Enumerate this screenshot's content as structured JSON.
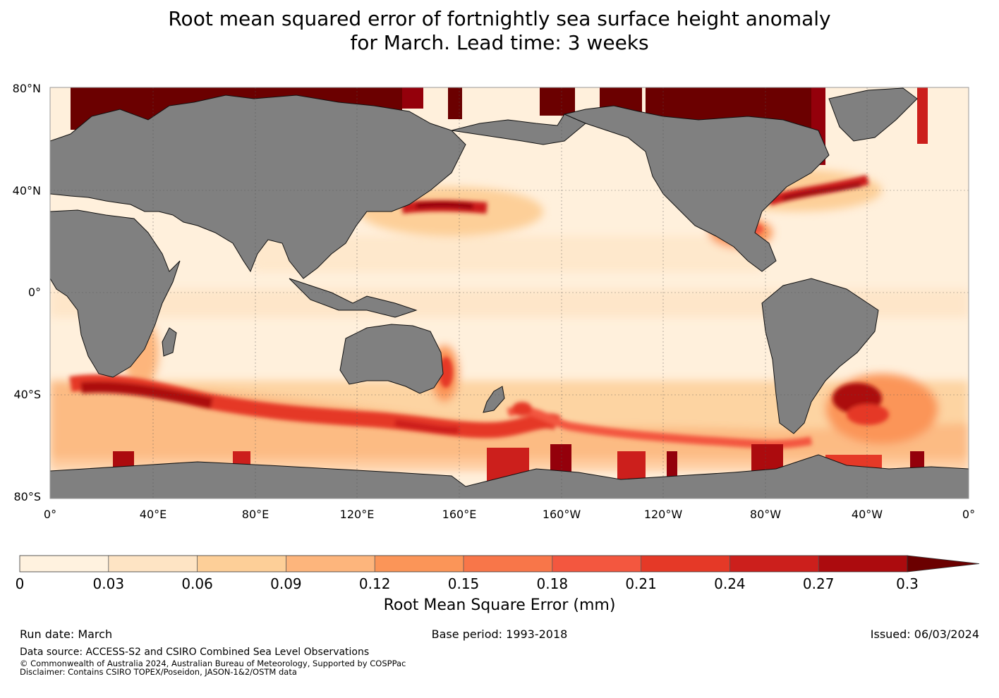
{
  "title_line1": "Root mean squared error of fortnightly sea surface height anomaly",
  "title_line2": "for March. Lead time: 3 weeks",
  "lat_labels": [
    "80°N",
    "40°N",
    "0°",
    "40°S",
    "80°S"
  ],
  "lon_labels": [
    "0°",
    "40°E",
    "80°E",
    "120°E",
    "160°E",
    "160°W",
    "120°W",
    "80°W",
    "40°W",
    "0°"
  ],
  "colorbar": {
    "ticks": [
      "0",
      "0.03",
      "0.06",
      "0.09",
      "0.12",
      "0.15",
      "0.18",
      "0.21",
      "0.24",
      "0.27",
      "0.3"
    ],
    "colors": [
      "#fff2df",
      "#fee4c4",
      "#fdcf98",
      "#fdb57c",
      "#fb9558",
      "#f87649",
      "#f3573f",
      "#e53927",
      "#cc1f1c",
      "#ac0b0e",
      "#94000b"
    ],
    "extend_color": "#6b0000",
    "label": "Root Mean Square Error (mm)"
  },
  "footer": {
    "run_date": "Run date: March",
    "base_period": "Base period: 1993-2018",
    "issued": "Issued: 06/03/2024",
    "data_source": "Data source: ACCESS-S2 and CSIRO Combined Sea Level Observations",
    "copyright": "© Commonwealth of Australia 2024, Australian Bureau of Meteorology, Supported by COSPPac",
    "disclaimer": "Disclaimer: Contains CSIRO TOPEX/Poseidon, JASON-1&2/OSTM data"
  },
  "colors": {
    "land": "#808080",
    "ocean_base": "#fff0dc",
    "grid": "#555555"
  }
}
